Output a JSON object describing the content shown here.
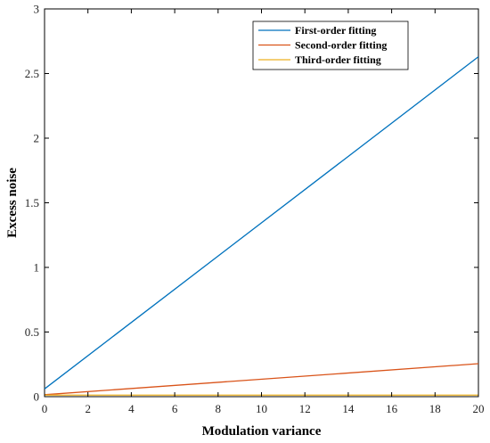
{
  "chart_data": {
    "type": "line",
    "title": "",
    "xlabel": "Modulation variance",
    "ylabel": "Excess noise",
    "xlim": [
      0,
      20
    ],
    "ylim": [
      0,
      3
    ],
    "xticks": [
      0,
      2,
      4,
      6,
      8,
      10,
      12,
      14,
      16,
      18,
      20
    ],
    "xtick_labels": [
      "0",
      "2",
      "4",
      "6",
      "8",
      "10",
      "12",
      "14",
      "16",
      "18",
      "20"
    ],
    "yticks": [
      0,
      0.5,
      1,
      1.5,
      2,
      2.5,
      3
    ],
    "ytick_labels": [
      "0",
      "0.5",
      "1",
      "1.5",
      "2",
      "2.5",
      "3"
    ],
    "grid": false,
    "legend_position": "top-right",
    "series": [
      {
        "name": "First-order fitting",
        "color": "#0072BD",
        "x": [
          0,
          20
        ],
        "y": [
          0.06,
          2.63
        ]
      },
      {
        "name": "Second-order fitting",
        "color": "#D95319",
        "x": [
          0,
          20
        ],
        "y": [
          0.015,
          0.255
        ]
      },
      {
        "name": "Third-order fitting",
        "color": "#EDB120",
        "x": [
          0,
          20
        ],
        "y": [
          0.012,
          0.012
        ]
      }
    ]
  }
}
